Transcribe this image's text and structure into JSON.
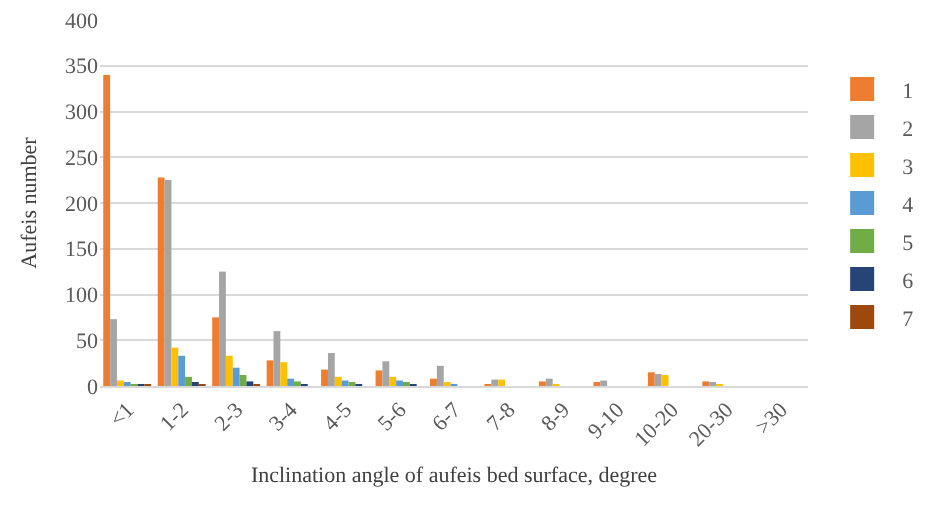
{
  "chart_data": {
    "type": "bar",
    "xlabel": "Inclination angle of aufeis bed surface, degree",
    "ylabel": "Aufeis number",
    "categories": [
      "<1",
      "1-2",
      "2-3",
      "3-4",
      "4-5",
      "5-6",
      "6-7",
      "7-8",
      "8-9",
      "9-10",
      "10-20",
      "20-30",
      ">30"
    ],
    "series": [
      {
        "name": "1",
        "color": "#ed7d31",
        "values": [
          340,
          228,
          75,
          28,
          18,
          17,
          8,
          1,
          5,
          4,
          15,
          5,
          0
        ]
      },
      {
        "name": "2",
        "color": "#a5a5a5",
        "values": [
          73,
          225,
          125,
          60,
          36,
          27,
          22,
          7,
          8,
          6,
          13,
          3,
          0
        ]
      },
      {
        "name": "3",
        "color": "#ffc000",
        "values": [
          6,
          42,
          33,
          26,
          10,
          10,
          3,
          7,
          2,
          0,
          12,
          1,
          0
        ]
      },
      {
        "name": "4",
        "color": "#5b9bd5",
        "values": [
          3,
          33,
          20,
          8,
          6,
          6,
          1,
          0,
          0,
          0,
          0,
          0,
          0
        ]
      },
      {
        "name": "5",
        "color": "#70ad47",
        "values": [
          2,
          10,
          12,
          5,
          3,
          4,
          0,
          0,
          0,
          0,
          0,
          0,
          0
        ]
      },
      {
        "name": "6",
        "color": "#264478",
        "values": [
          1,
          3,
          5,
          1,
          1,
          1,
          0,
          0,
          0,
          0,
          0,
          0,
          0
        ]
      },
      {
        "name": "7",
        "color": "#9e480e",
        "values": [
          1,
          1,
          2,
          0,
          0,
          0,
          0,
          0,
          0,
          0,
          0,
          0,
          0
        ]
      }
    ],
    "ylim": [
      0,
      400
    ],
    "yticks": [
      0,
      50,
      100,
      150,
      200,
      250,
      300,
      350,
      400
    ],
    "grid": "y",
    "legend": "right"
  }
}
